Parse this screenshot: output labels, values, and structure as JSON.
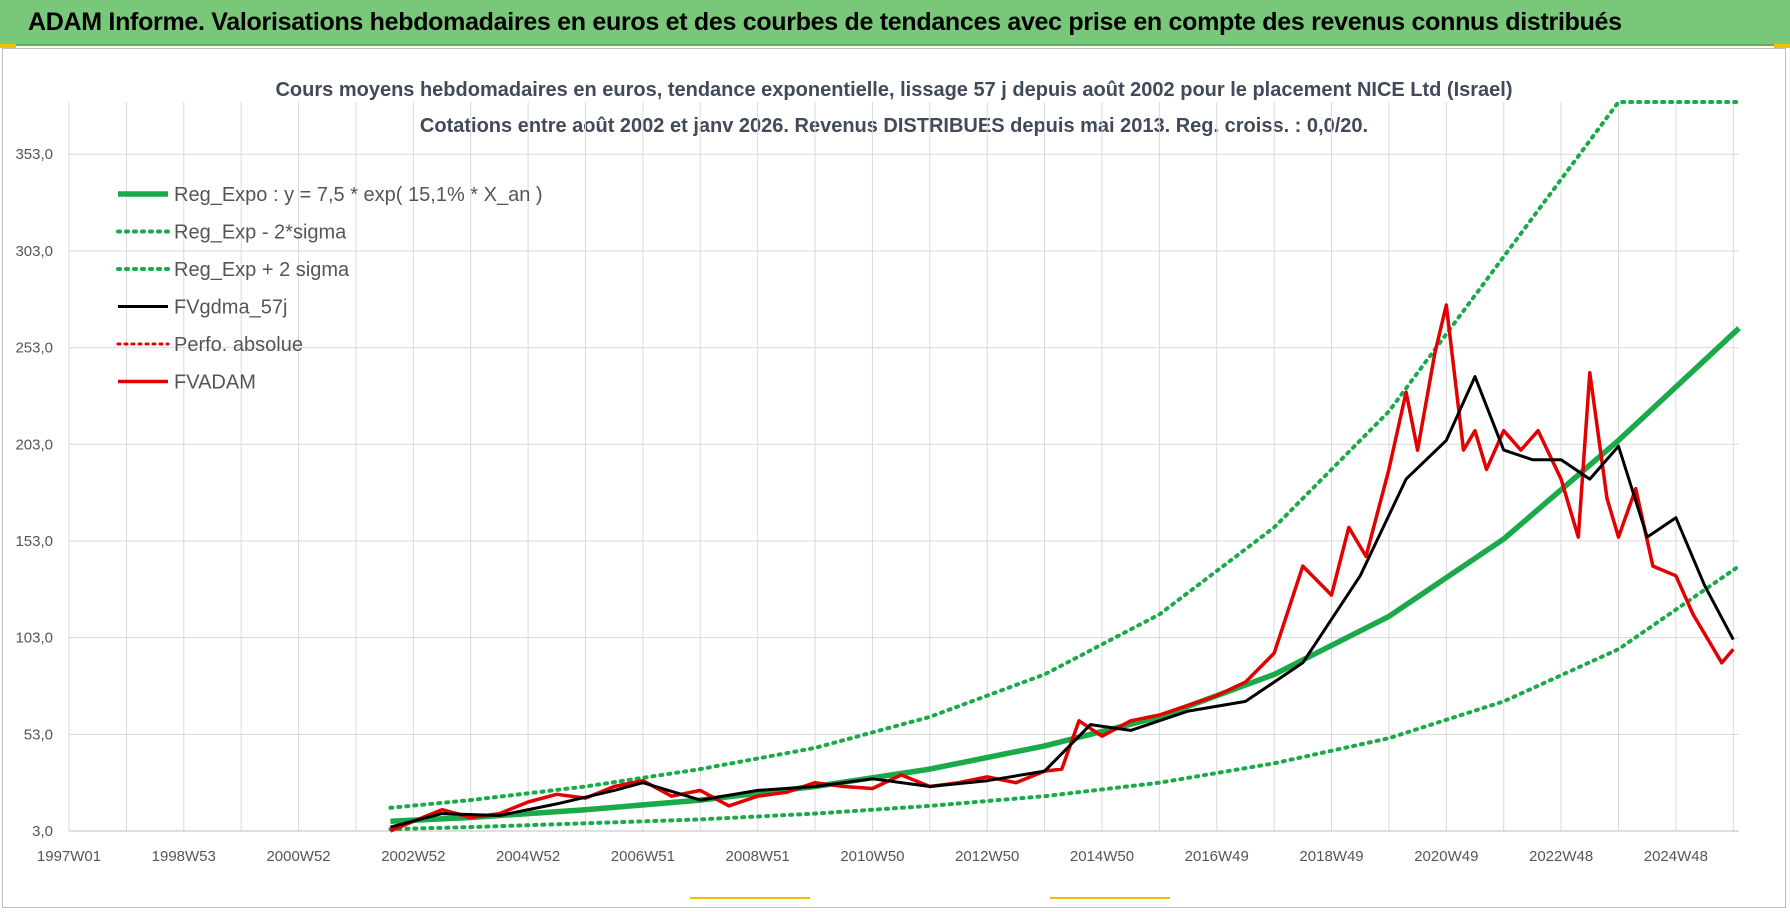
{
  "header": {
    "banner": "ADAM Informe. Valorisations hebdomadaires en euros et des courbes de tendances avec prise en compte des revenus connus distribués"
  },
  "colors": {
    "banner_bg": "#79c879",
    "reg_expo": "#1aaa4a",
    "fvgdma": "#000000",
    "fvadam": "#e30000",
    "grid": "#d9d9d9"
  },
  "chart_data": {
    "type": "line",
    "title": "Cours moyens hebdomadaires en euros, tendance exponentielle, lissage 57 j depuis août 2002 pour le placement NICE Ltd (Israel)",
    "subtitle": "Cotations entre août 2002 et janv 2026. Revenus DISTRIBUES depuis mai 2013. Reg. croiss. : 0,0/20.",
    "x_tick_labels": [
      "1997W01",
      "1998W53",
      "2000W52",
      "2002W52",
      "2004W52",
      "2006W51",
      "2008W51",
      "2010W50",
      "2012W50",
      "2014W50",
      "2016W49",
      "2018W49",
      "2020W49",
      "2022W48",
      "2024W48"
    ],
    "x_tick_years": [
      1997.0,
      1999.0,
      2001.0,
      2003.0,
      2005.0,
      2007.0,
      2009.0,
      2011.0,
      2013.0,
      2015.0,
      2017.0,
      2019.0,
      2021.0,
      2023.0,
      2025.0
    ],
    "xlim": [
      1997.0,
      2026.1
    ],
    "y_ticks": [
      3,
      53,
      103,
      153,
      203,
      253,
      303,
      353
    ],
    "y_tick_labels": [
      "3,0",
      "53,0",
      "103,0",
      "153,0",
      "203,0",
      "253,0",
      "303,0",
      "353,0"
    ],
    "ylim": [
      3,
      380
    ],
    "grid": true,
    "legend_position": "top-left",
    "series": [
      {
        "name": "Reg_Expo : y = 7,5 * exp( 15,1% *  X_an )",
        "style": "solid-green",
        "color": "#1aaa4a",
        "x": [
          2002.6,
          2004,
          2006,
          2008,
          2010,
          2012,
          2014,
          2016,
          2018,
          2020,
          2022,
          2024,
          2026.1
        ],
        "y": [
          8,
          10,
          14,
          19,
          26,
          35,
          47,
          62,
          84,
          114,
          154,
          205,
          263
        ]
      },
      {
        "name": "Reg_Exp - 2*sigma",
        "style": "dotted-green",
        "color": "#1aaa4a",
        "x": [
          2002.6,
          2004,
          2006,
          2008,
          2010,
          2012,
          2014,
          2016,
          2018,
          2020,
          2022,
          2024,
          2026.1
        ],
        "y": [
          4,
          5,
          7,
          9,
          12,
          16,
          21,
          28,
          38,
          51,
          70,
          97,
          140
        ]
      },
      {
        "name": "Reg_Exp + 2 sigma",
        "style": "dotted-green",
        "color": "#1aaa4a",
        "x": [
          2002.6,
          2004,
          2006,
          2008,
          2010,
          2012,
          2014,
          2016,
          2018,
          2020,
          2022,
          2024,
          2025.0,
          2026.1
        ],
        "y": [
          15,
          19,
          26,
          35,
          46,
          62,
          84,
          115,
          160,
          220,
          300,
          380,
          380,
          380
        ]
      },
      {
        "name": "FVgdma_57j",
        "style": "solid-black",
        "color": "#000000",
        "x": [
          2002.6,
          2003.5,
          2004.5,
          2005.5,
          2006.5,
          2007.0,
          2008.0,
          2009.0,
          2010.0,
          2011.0,
          2012.0,
          2013.0,
          2014.0,
          2014.8,
          2015.5,
          2016.5,
          2017.5,
          2018.5,
          2019.5,
          2020.3,
          2021.0,
          2021.5,
          2022.0,
          2022.5,
          2023.0,
          2023.5,
          2024.0,
          2024.5,
          2025.0,
          2025.5,
          2026.0
        ],
        "y": [
          5,
          12,
          11,
          17,
          24,
          28,
          19,
          24,
          26,
          30,
          26,
          29,
          34,
          58,
          55,
          65,
          70,
          90,
          135,
          185,
          205,
          238,
          200,
          195,
          195,
          185,
          202,
          155,
          165,
          130,
          102
        ]
      },
      {
        "name": "Perfo. absolue",
        "style": "dotted-red",
        "color": "#e30000",
        "x": [],
        "y": []
      },
      {
        "name": "FVADAM",
        "style": "solid-red",
        "color": "#e30000",
        "x": [
          2002.6,
          2003.0,
          2003.5,
          2004.0,
          2004.5,
          2005.0,
          2005.5,
          2006.0,
          2006.5,
          2007.0,
          2007.5,
          2008.0,
          2008.5,
          2009.0,
          2009.5,
          2010.0,
          2010.5,
          2011.0,
          2011.5,
          2012.0,
          2012.5,
          2013.0,
          2013.5,
          2014.0,
          2014.3,
          2014.6,
          2015.0,
          2015.5,
          2016.0,
          2016.5,
          2017.0,
          2017.5,
          2018.0,
          2018.5,
          2019.0,
          2019.3,
          2019.6,
          2020.0,
          2020.3,
          2020.5,
          2020.8,
          2021.0,
          2021.3,
          2021.5,
          2021.7,
          2022.0,
          2022.3,
          2022.6,
          2023.0,
          2023.3,
          2023.5,
          2023.8,
          2024.0,
          2024.3,
          2024.6,
          2025.0,
          2025.3,
          2025.6,
          2025.8,
          2026.0
        ],
        "y": [
          3,
          8,
          14,
          10,
          12,
          18,
          22,
          20,
          26,
          29,
          21,
          24,
          16,
          21,
          23,
          28,
          26,
          25,
          32,
          26,
          28,
          31,
          28,
          34,
          35,
          60,
          52,
          60,
          63,
          68,
          73,
          80,
          95,
          140,
          125,
          160,
          145,
          190,
          230,
          200,
          250,
          275,
          200,
          210,
          190,
          210,
          200,
          210,
          185,
          155,
          240,
          175,
          155,
          180,
          140,
          135,
          115,
          100,
          90,
          97
        ]
      }
    ]
  }
}
